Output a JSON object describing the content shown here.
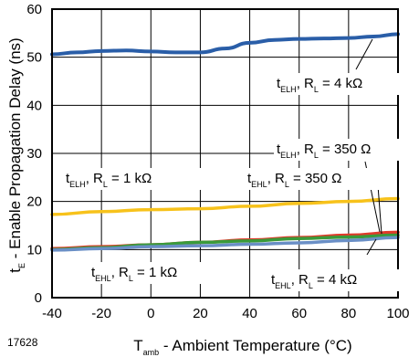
{
  "figure_id": "17628",
  "chart_data": {
    "type": "line",
    "xlabel": {
      "prefix": "T",
      "sub": "amb",
      "rest": " - Ambient Temperature (°C)"
    },
    "ylabel": {
      "prefix": "t",
      "sub": "E",
      "rest": " - Enable Propagation Delay (ns)"
    },
    "xlim": [
      -40,
      100
    ],
    "ylim": [
      0,
      60
    ],
    "xticks": [
      -40,
      -20,
      0,
      20,
      40,
      60,
      80,
      100
    ],
    "yticks": [
      0,
      10,
      20,
      30,
      40,
      50,
      60
    ],
    "grid": true,
    "series": [
      {
        "color": "#2a5ea8",
        "x": [
          -40,
          -30,
          -20,
          -10,
          0,
          10,
          20,
          30,
          40,
          50,
          60,
          70,
          80,
          90,
          100
        ],
        "y": [
          50.6,
          51.0,
          51.3,
          51.4,
          51.2,
          51.0,
          51.0,
          51.8,
          53.0,
          53.6,
          53.8,
          53.9,
          54.0,
          54.3,
          54.8
        ]
      },
      {
        "color": "#f7c21b",
        "x": [
          -40,
          -20,
          0,
          20,
          40,
          60,
          80,
          100
        ],
        "y": [
          17.3,
          17.9,
          18.3,
          18.5,
          19.0,
          19.6,
          20.0,
          20.6
        ]
      },
      {
        "color": "#e03a2a",
        "x": [
          -40,
          -20,
          0,
          20,
          40,
          60,
          80,
          100
        ],
        "y": [
          10.2,
          10.6,
          11.0,
          11.5,
          12.0,
          12.5,
          13.0,
          13.6
        ]
      },
      {
        "color": "#3a9a3a",
        "x": [
          -40,
          -20,
          0,
          20,
          40,
          60,
          80,
          100
        ],
        "y": [
          10.0,
          10.4,
          11.0,
          11.5,
          11.8,
          12.3,
          12.6,
          13.0
        ]
      },
      {
        "color": "#6a8fc6",
        "x": [
          -40,
          -20,
          0,
          20,
          40,
          60,
          80,
          100
        ],
        "y": [
          9.9,
          10.2,
          10.6,
          10.8,
          11.1,
          11.4,
          11.9,
          12.5
        ]
      }
    ],
    "annotations": [
      {
        "var": "t",
        "sub": "ELH",
        "rest": ", R",
        "rsub": "L",
        "value": " = 4 kΩ"
      },
      {
        "var": "t",
        "sub": "ELH",
        "rest": ", R",
        "rsub": "L",
        "value": " = 350 Ω"
      },
      {
        "var": "t",
        "sub": "EHL",
        "rest": ", R",
        "rsub": "L",
        "value": " = 350 Ω"
      },
      {
        "var": "t",
        "sub": "ELH",
        "rest": ", R",
        "rsub": "L",
        "value": " = 1 kΩ"
      },
      {
        "var": "t",
        "sub": "EHL",
        "rest": ", R",
        "rsub": "L",
        "value": " = 1 kΩ"
      },
      {
        "var": "t",
        "sub": "EHL",
        "rest": ", R",
        "rsub": "L",
        "value": " = 4 kΩ"
      }
    ]
  }
}
